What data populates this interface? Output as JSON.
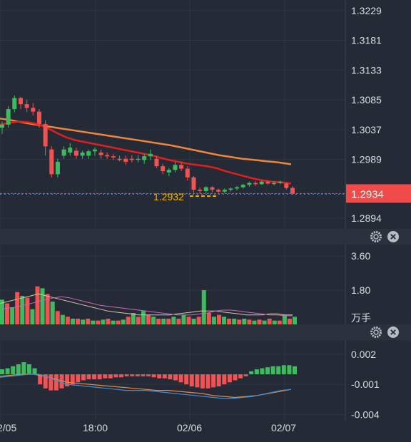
{
  "chart_data": [
    {
      "type": "candlestick",
      "panel": "price",
      "yticks": [
        "1.3229",
        "1.3181",
        "1.3133",
        "1.3085",
        "1.3037",
        "1.2989",
        "1.2894"
      ],
      "yrange": [
        1.2877,
        1.3246
      ],
      "current_price_label": "1.2934",
      "low_marker_label": "1.2932",
      "candles": [
        [
          1.304,
          1.305,
          1.303,
          1.3045
        ],
        [
          1.3045,
          1.3075,
          1.304,
          1.307
        ],
        [
          1.307,
          1.3092,
          1.3065,
          1.3088
        ],
        [
          1.3088,
          1.309,
          1.307,
          1.3078
        ],
        [
          1.3078,
          1.3085,
          1.3065,
          1.3072
        ],
        [
          1.3072,
          1.308,
          1.306,
          1.3066
        ],
        [
          1.3066,
          1.307,
          1.304,
          1.3046
        ],
        [
          1.3046,
          1.3052,
          1.2995,
          1.301
        ],
        [
          1.3005,
          1.301,
          1.296,
          1.2965
        ],
        [
          1.2965,
          1.299,
          1.296,
          1.2985
        ],
        [
          1.2995,
          1.301,
          1.299,
          1.3005
        ],
        [
          1.3,
          1.3015,
          1.2995,
          1.3008
        ],
        [
          1.3003,
          1.3008,
          1.299,
          1.2995
        ],
        [
          1.2995,
          1.3003,
          1.299,
          1.3
        ],
        [
          1.2995,
          1.3005,
          1.299,
          1.3002
        ],
        [
          1.3002,
          1.3008,
          1.2995,
          1.3005
        ],
        [
          1.3,
          1.3005,
          1.299,
          1.2996
        ],
        [
          1.2996,
          1.3,
          1.299,
          1.2994
        ],
        [
          1.2994,
          1.2998,
          1.2988,
          1.2992
        ],
        [
          1.299,
          1.2995,
          1.2986,
          1.2988
        ],
        [
          1.299,
          1.2995,
          1.298,
          1.2985
        ],
        [
          1.299,
          1.2996,
          1.2984,
          1.2988
        ],
        [
          1.299,
          1.2996,
          1.2984,
          1.299
        ],
        [
          1.2988,
          1.2998,
          1.2982,
          1.2994
        ],
        [
          1.2994,
          1.3005,
          1.2988,
          1.2998
        ],
        [
          1.299,
          1.2995,
          1.2975,
          1.2978
        ],
        [
          1.2978,
          1.2982,
          1.2965,
          1.297
        ],
        [
          1.2968,
          1.2975,
          1.2962,
          1.2972
        ],
        [
          1.2972,
          1.2985,
          1.2968,
          1.298
        ],
        [
          1.298,
          1.2985,
          1.297,
          1.2974
        ],
        [
          1.2974,
          1.2978,
          1.2955,
          1.296
        ],
        [
          1.296,
          1.2962,
          1.2935,
          1.294
        ],
        [
          1.294,
          1.2944,
          1.2934,
          1.2938
        ],
        [
          1.2938,
          1.2946,
          1.2935,
          1.2944
        ],
        [
          1.2944,
          1.2946,
          1.2936,
          1.294
        ],
        [
          1.294,
          1.2942,
          1.2935,
          1.2937
        ],
        [
          1.2937,
          1.2942,
          1.2935,
          1.294
        ],
        [
          1.294,
          1.2944,
          1.2937,
          1.2942
        ],
        [
          1.2942,
          1.2946,
          1.2939,
          1.2944
        ],
        [
          1.2944,
          1.295,
          1.2942,
          1.2948
        ],
        [
          1.2948,
          1.2953,
          1.2945,
          1.2951
        ],
        [
          1.2951,
          1.2954,
          1.2946,
          1.2949
        ],
        [
          1.2949,
          1.2955,
          1.2948,
          1.2953
        ],
        [
          1.2953,
          1.2955,
          1.2948,
          1.295
        ],
        [
          1.295,
          1.2954,
          1.2947,
          1.2951
        ],
        [
          1.2951,
          1.2955,
          1.2949,
          1.2953
        ],
        [
          1.295,
          1.2952,
          1.294,
          1.2943
        ],
        [
          1.2943,
          1.2946,
          1.2932,
          1.2934
        ]
      ],
      "ma_red": [
        1.3045,
        1.3048,
        1.305,
        1.3049,
        1.3046,
        1.304,
        1.3032,
        1.3025,
        1.302,
        1.3017,
        1.3014,
        1.3011,
        1.3008,
        1.3005,
        1.3002,
        1.2999,
        1.2996,
        1.2992,
        1.2988,
        1.2985,
        1.2982,
        1.298,
        1.2978,
        1.2975,
        1.297,
        1.2966,
        1.2962,
        1.2958,
        1.2955,
        1.2953,
        1.2952,
        1.295
      ],
      "ma_orange": [
        1.3055,
        1.3052,
        1.3048,
        1.3045,
        1.3042,
        1.3039,
        1.3036,
        1.3033,
        1.303,
        1.3027,
        1.3024,
        1.3021,
        1.3018,
        1.3015,
        1.3012,
        1.3008,
        1.3004,
        1.3,
        1.2996,
        1.2993,
        1.299,
        1.2988,
        1.2986,
        1.2984,
        1.2981
      ],
      "colors": {
        "up": "#3dbb5e",
        "down": "#f25252",
        "ma_red": "#e41e1e",
        "ma_orange": "#f2853a",
        "price_tag": "#f04a4a",
        "low_marker": "#f5b400"
      }
    },
    {
      "type": "bar",
      "panel": "volume",
      "yticks": [
        "3.60",
        "1.80"
      ],
      "unit_label": "万手",
      "yrange": [
        0,
        4.2
      ],
      "values": [
        1.3,
        1.1,
        0.9,
        1.7,
        1.5,
        1.4,
        0.8,
        2.0,
        1.9,
        1.6,
        1.2,
        0.7,
        0.5,
        0.4,
        0.3,
        0.3,
        0.25,
        0.3,
        0.2,
        0.2,
        0.25,
        0.3,
        0.2,
        0.2,
        0.25,
        0.4,
        0.6,
        0.4,
        0.7,
        0.5,
        0.4,
        0.3,
        0.3,
        0.3,
        0.4,
        0.3,
        0.5,
        0.4,
        0.3,
        0.4,
        1.8,
        0.6,
        0.4,
        0.5,
        0.4,
        0.3,
        0.3,
        0.25,
        0.3,
        0.25,
        0.2,
        0.25,
        0.2,
        0.3,
        0.2,
        0.2,
        0.5,
        0.3,
        0.4
      ],
      "line1": [
        1.1,
        1.2,
        1.3,
        1.4,
        1.5,
        1.6,
        1.5,
        1.4,
        1.3,
        1.2,
        1.1,
        1.0,
        0.9,
        0.8,
        0.7,
        0.65,
        0.6,
        0.55,
        0.5,
        0.5,
        0.5,
        0.5,
        0.5,
        0.55,
        0.6,
        0.65,
        0.7,
        0.7,
        0.7,
        0.65,
        0.6,
        0.55,
        0.5,
        0.5,
        0.5,
        0.55,
        0.55,
        0.5,
        0.5
      ],
      "line2": [
        0.8,
        0.85,
        0.9,
        1.0,
        1.1,
        1.2,
        1.3,
        1.4,
        1.45,
        1.4,
        1.3,
        1.2,
        1.1,
        1.0,
        0.95,
        0.9,
        0.85,
        0.8,
        0.75,
        0.7,
        0.65,
        0.6,
        0.55,
        0.5,
        0.5,
        0.5,
        0.55,
        0.6,
        0.7,
        0.75,
        0.75,
        0.7,
        0.65,
        0.6,
        0.55,
        0.5,
        0.5,
        0.45,
        0.45
      ],
      "colors": {
        "up": "#3dbb5e",
        "down": "#f25252",
        "line1": "#d7c7a2",
        "line2": "#d066c0"
      }
    },
    {
      "type": "macd",
      "panel": "macd",
      "yticks": [
        "0.002",
        "-0.001",
        "-0.004"
      ],
      "yrange": [
        -0.0046,
        0.0034
      ],
      "histogram": [
        0.0005,
        0.0006,
        0.0008,
        0.001,
        0.0012,
        0.001,
        0.0006,
        -0.001,
        -0.0014,
        -0.0016,
        -0.0016,
        -0.0014,
        -0.0012,
        -0.001,
        -0.0008,
        -0.0006,
        -0.0005,
        -0.0005,
        -0.0005,
        -0.0004,
        -0.0004,
        -0.0003,
        -0.0003,
        -0.0002,
        -0.0002,
        -0.0002,
        -0.0002,
        -0.0002,
        -0.0003,
        -0.0004,
        -0.0004,
        -0.0005,
        -0.0006,
        -0.0008,
        -0.001,
        -0.0012,
        -0.0013,
        -0.0014,
        -0.0014,
        -0.0013,
        -0.0012,
        -0.001,
        -0.0008,
        -0.0006,
        -0.0004,
        -0.0002,
        0.0003,
        0.0005,
        0.0006,
        0.0007,
        0.0008,
        0.0008,
        0.0009,
        0.0009,
        0.0008
      ],
      "dif": [
        -0.0002,
        -0.0001,
        0.0,
        0.0,
        -0.0002,
        -0.0005,
        -0.0008,
        -0.0009,
        -0.001,
        -0.0011,
        -0.0012,
        -0.0013,
        -0.0014,
        -0.0015,
        -0.0016,
        -0.0016,
        -0.0017,
        -0.0018,
        -0.0019,
        -0.0021,
        -0.0022,
        -0.0023,
        -0.0022,
        -0.0021,
        -0.0019,
        -0.0017,
        -0.0015
      ],
      "dea": [
        -0.0003,
        -0.0002,
        -0.0001,
        0.0,
        0.0,
        -0.0003,
        -0.0007,
        -0.001,
        -0.0011,
        -0.0012,
        -0.0013,
        -0.0014,
        -0.0015,
        -0.0016,
        -0.0016,
        -0.0016,
        -0.0017,
        -0.0018,
        -0.0019,
        -0.002,
        -0.0021,
        -0.0022,
        -0.0023,
        -0.0024,
        -0.0024,
        -0.0023,
        -0.0022,
        -0.002,
        -0.0018,
        -0.0016,
        -0.0015
      ],
      "colors": {
        "pos": "#3dbb5e",
        "neg": "#f25252",
        "dif": "#f0863f",
        "dea": "#3d8ed8"
      }
    }
  ],
  "xaxis": {
    "labels": [
      "2/05",
      "18:00",
      "02/06",
      "02/07"
    ]
  },
  "controls": {
    "settings_icon": "gear-icon",
    "close_icon": "close-icon"
  }
}
